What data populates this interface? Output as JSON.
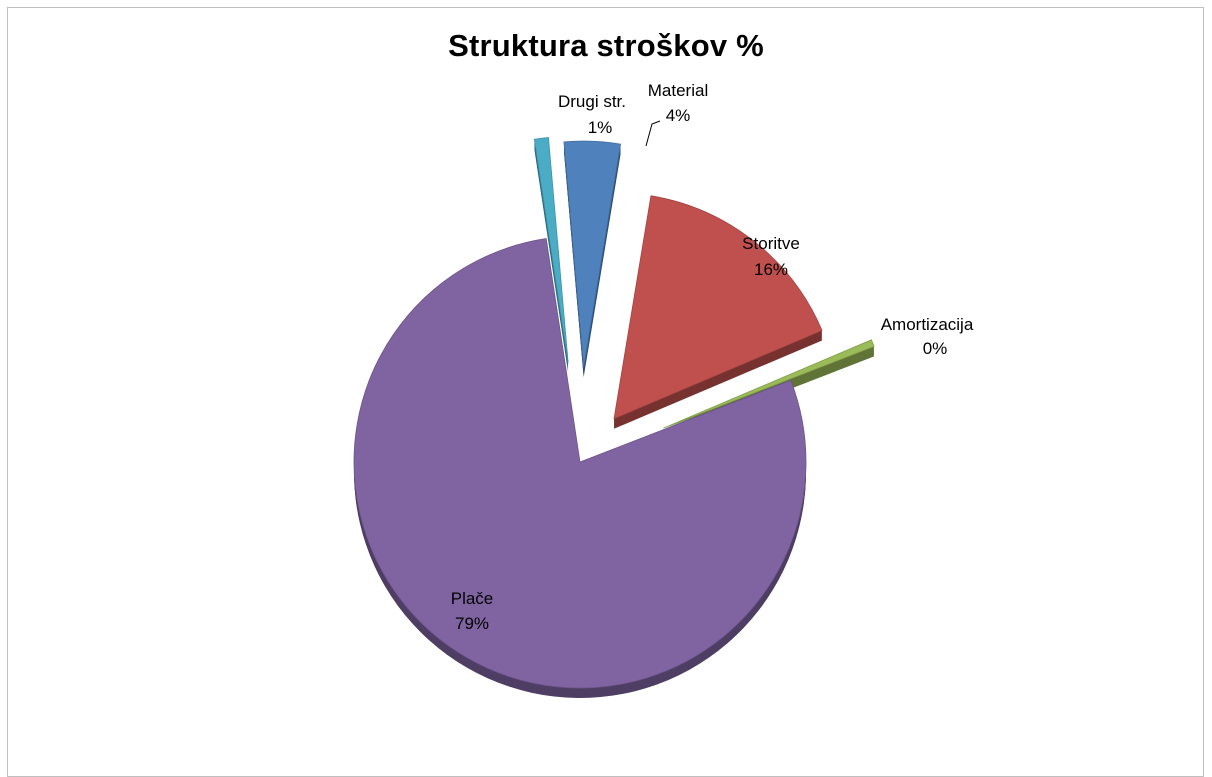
{
  "chart_data": {
    "type": "pie",
    "title": "Struktura stroškov  %",
    "slices": [
      {
        "name": "Material",
        "value": 4,
        "label": "4%",
        "color": "#4f81bd",
        "exploded": true
      },
      {
        "name": "Storitve",
        "value": 16,
        "label": "16%",
        "color": "#c0504d",
        "exploded": true
      },
      {
        "name": "Amortizacija",
        "value": 0,
        "label": "0%",
        "color": "#9bbb59",
        "exploded": true
      },
      {
        "name": "Plače",
        "value": 79,
        "label": "79%",
        "color": "#8064a2",
        "exploded": false
      },
      {
        "name": "Drugi str.",
        "value": 1,
        "label": "1%",
        "color": "#4bacc6",
        "exploded": true
      }
    ],
    "style": "3d-exploded-pie"
  }
}
